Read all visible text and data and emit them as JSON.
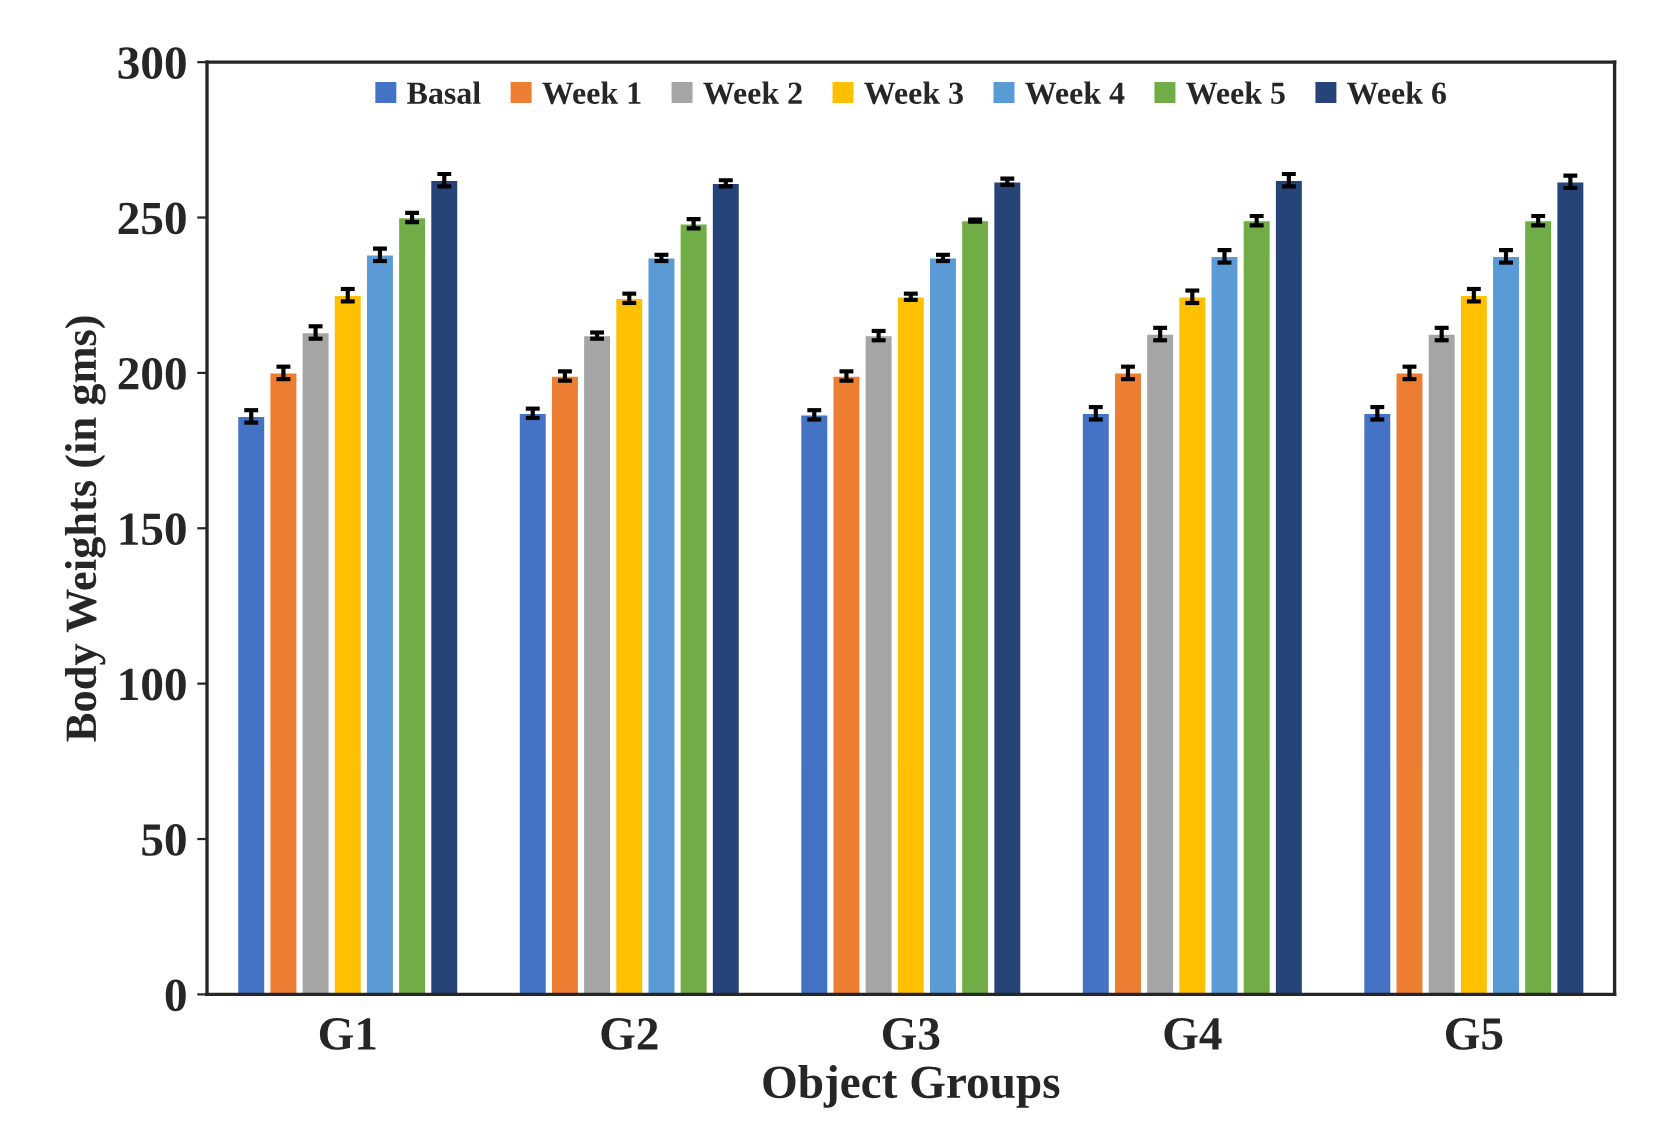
{
  "chart_data": {
    "type": "bar",
    "xlabel": "Object Groups",
    "ylabel": "Body Weights (in gms)",
    "categories": [
      "G1",
      "G2",
      "G3",
      "G4",
      "G5"
    ],
    "series": [
      {
        "name": "Basal",
        "color": "#4472c4",
        "values": [
          186,
          187,
          186.5,
          187,
          187
        ],
        "errors": [
          2,
          1.5,
          1.5,
          2,
          2
        ]
      },
      {
        "name": "Week 1",
        "color": "#ed7d31",
        "values": [
          200,
          199,
          199,
          200,
          200
        ],
        "errors": [
          2,
          1.5,
          1.5,
          2,
          2
        ]
      },
      {
        "name": "Week 2",
        "color": "#a5a5a5",
        "values": [
          213,
          212,
          212,
          212.5,
          212.5
        ],
        "errors": [
          2,
          1,
          1.5,
          2,
          2
        ]
      },
      {
        "name": "Week 3",
        "color": "#ffc000",
        "values": [
          225,
          224,
          224.5,
          224.5,
          225
        ],
        "errors": [
          2,
          1.5,
          1,
          2,
          2
        ]
      },
      {
        "name": "Week 4",
        "color": "#5b9bd5",
        "values": [
          238,
          237,
          237,
          237.5,
          237.5
        ],
        "errors": [
          2,
          1,
          1,
          2,
          2
        ]
      },
      {
        "name": "Week 5",
        "color": "#70ad47",
        "values": [
          250,
          248,
          249,
          249,
          249
        ],
        "errors": [
          1.5,
          1.5,
          0.3,
          1.5,
          1.5
        ]
      },
      {
        "name": "Week 6",
        "color": "#264478",
        "values": [
          262,
          261,
          261.5,
          262,
          261.5
        ],
        "errors": [
          2,
          1,
          1,
          2,
          2
        ]
      }
    ],
    "ylim": [
      0,
      300
    ],
    "yticks": [
      0,
      50,
      100,
      150,
      200,
      250,
      300
    ],
    "legend": "top",
    "grid": false
  }
}
